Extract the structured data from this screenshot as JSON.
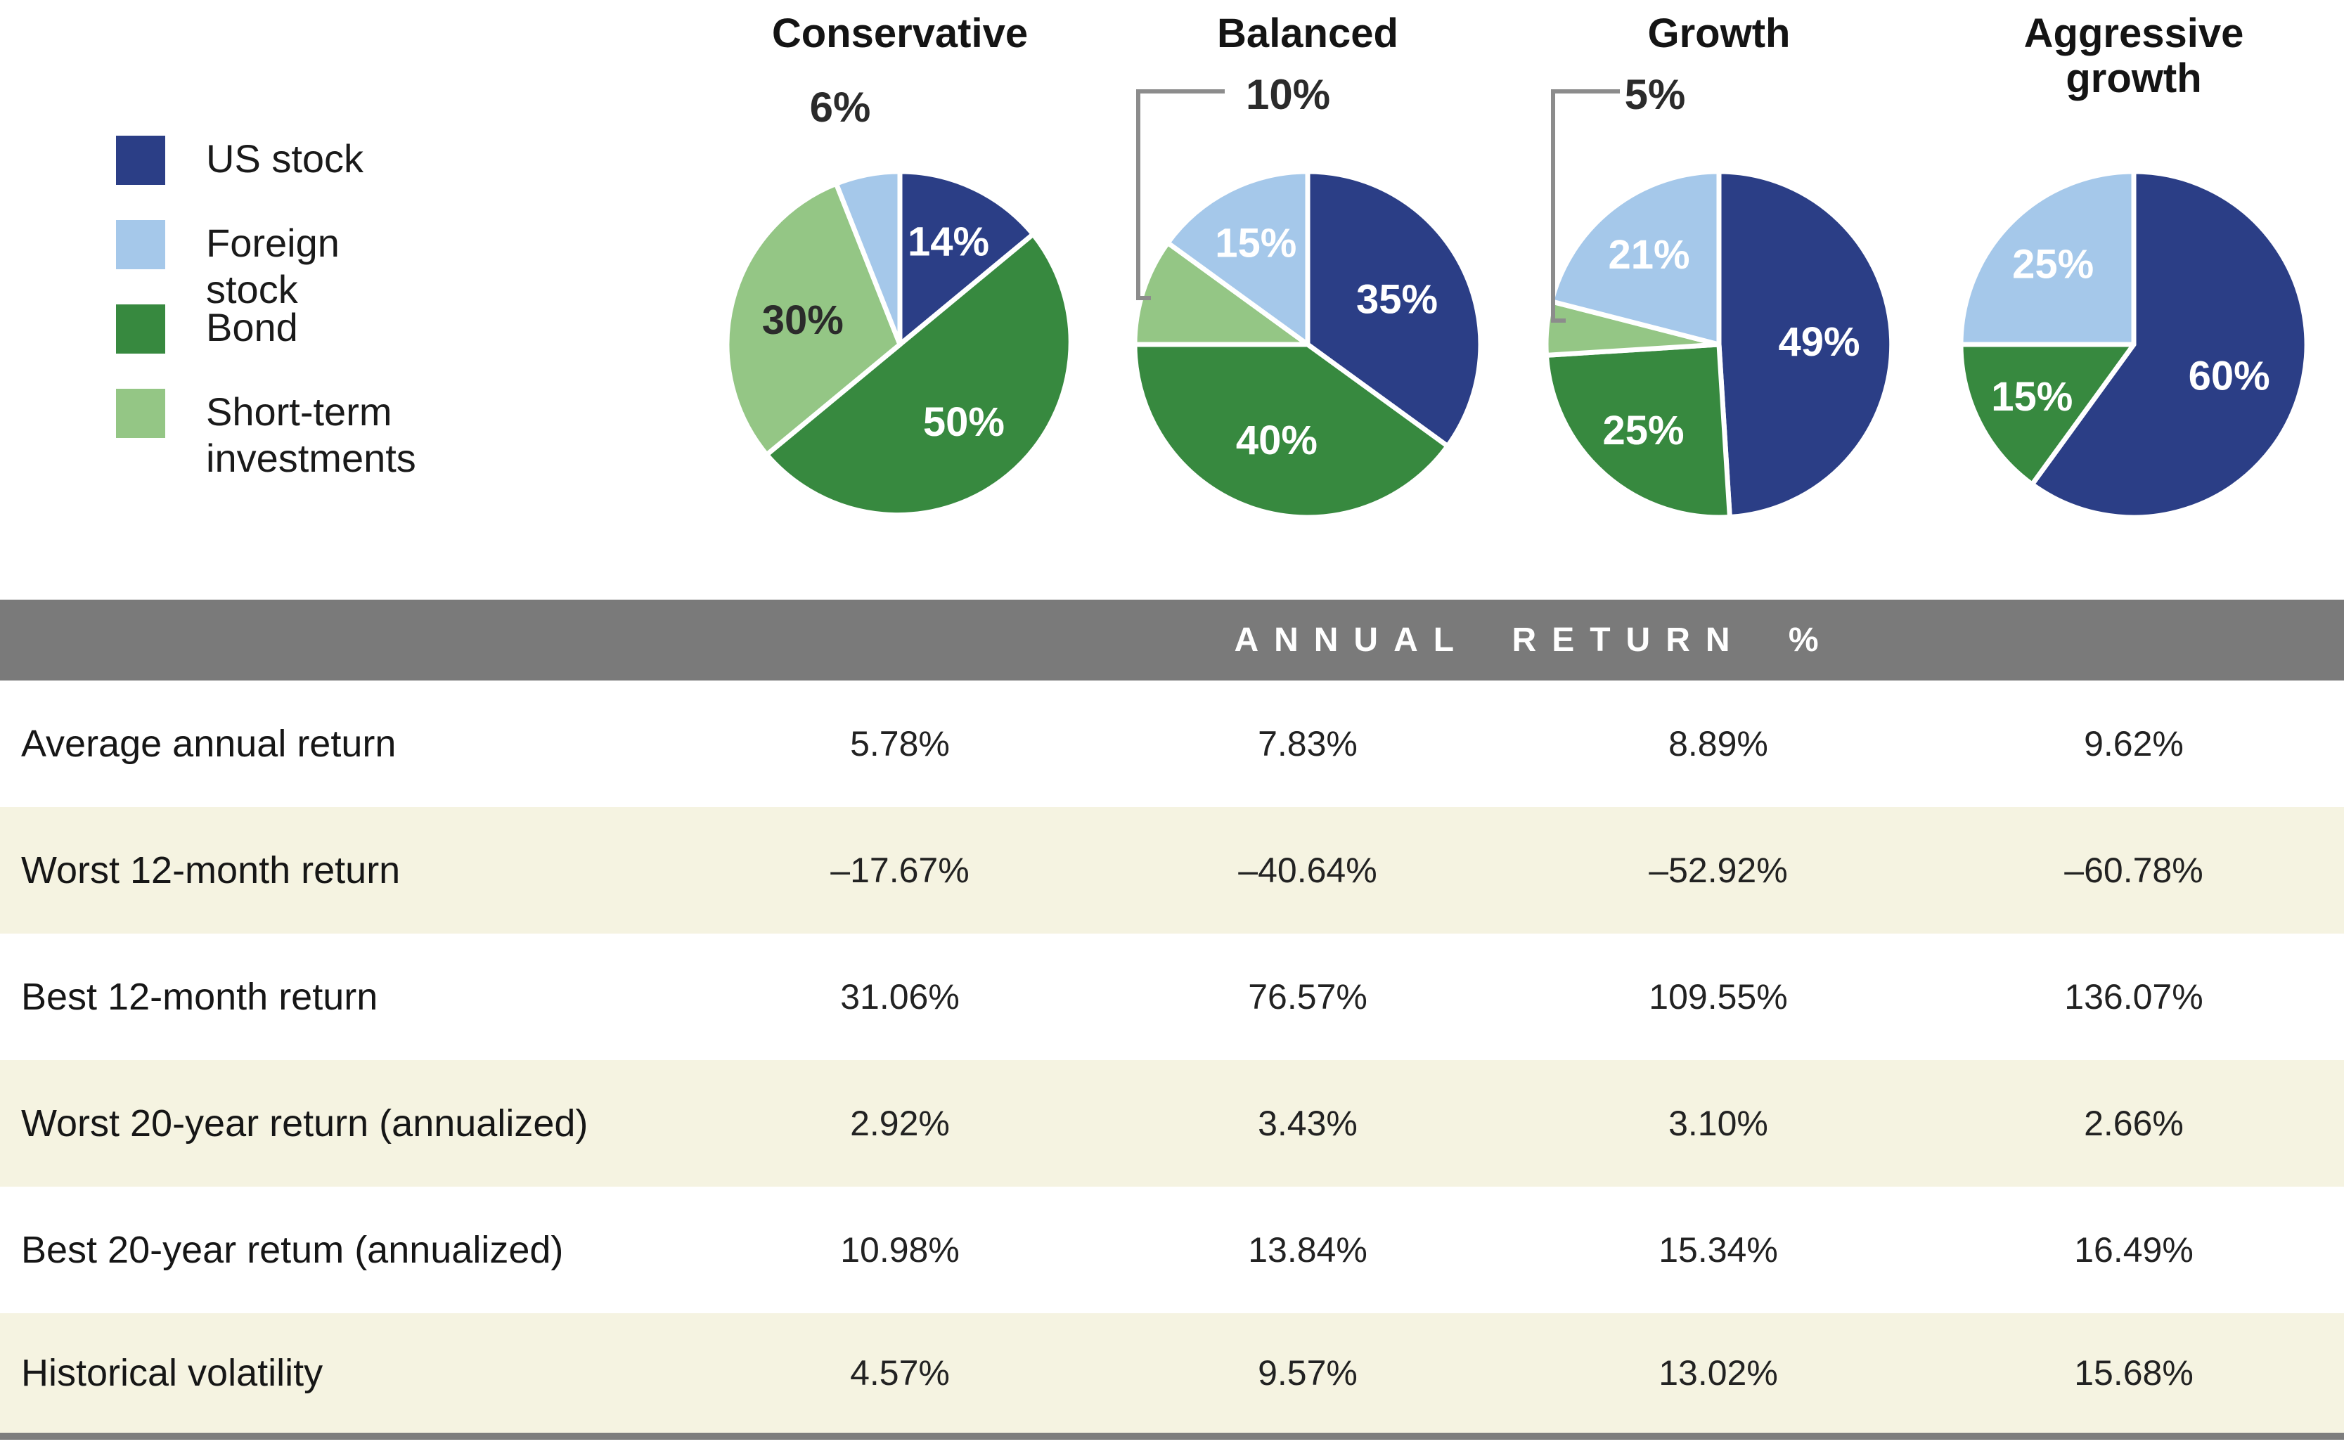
{
  "palette": {
    "us_stock": "#2b3e86",
    "foreign_stock": "#a5c8ea",
    "bond": "#37893f",
    "short_term_investments": "#94c685",
    "header_band_gray": "#7a7a7a",
    "row_stripe_cream": "#f5f3e1",
    "bottom_rule_gray": "#7d7d7d",
    "callout_line_gray": "#8c8c8c",
    "label_dark": "#2b2b2b",
    "label_light": "#ffffff"
  },
  "legend": {
    "items": [
      {
        "label": "US stock",
        "color": "#2b3e86"
      },
      {
        "label": "Foreign stock",
        "color": "#a5c8ea"
      },
      {
        "label": "Bond",
        "color": "#37893f"
      },
      {
        "label": "Short-term investments",
        "color": "#94c685"
      }
    ]
  },
  "chart_data": [
    {
      "type": "pie",
      "title": "Conservative",
      "slices": [
        {
          "label": "US stock",
          "value": 14,
          "pct_label": "14%",
          "color": "#2b3e86",
          "label_pos": "inside",
          "label_color": "#ffffff"
        },
        {
          "label": "Bond",
          "value": 50,
          "pct_label": "50%",
          "color": "#37893f",
          "label_pos": "inside",
          "label_color": "#ffffff"
        },
        {
          "label": "Short-term investments",
          "value": 30,
          "pct_label": "30%",
          "color": "#94c685",
          "label_pos": "inside",
          "label_color": "#2b2b2b"
        },
        {
          "label": "Foreign stock",
          "value": 6,
          "pct_label": "6%",
          "color": "#a5c8ea",
          "label_pos": "outside",
          "label_color": "#2b2b2b"
        }
      ]
    },
    {
      "type": "pie",
      "title": "Balanced",
      "slices": [
        {
          "label": "US stock",
          "value": 35,
          "pct_label": "35%",
          "color": "#2b3e86",
          "label_pos": "inside",
          "label_color": "#ffffff"
        },
        {
          "label": "Bond",
          "value": 40,
          "pct_label": "40%",
          "color": "#37893f",
          "label_pos": "inside",
          "label_color": "#ffffff"
        },
        {
          "label": "Short-term investments",
          "value": 10,
          "pct_label": "10%",
          "color": "#94c685",
          "label_pos": "callout",
          "label_color": "#2b2b2b"
        },
        {
          "label": "Foreign stock",
          "value": 15,
          "pct_label": "15%",
          "color": "#a5c8ea",
          "label_pos": "inside",
          "label_color": "#ffffff"
        }
      ]
    },
    {
      "type": "pie",
      "title": "Growth",
      "slices": [
        {
          "label": "US stock",
          "value": 49,
          "pct_label": "49%",
          "color": "#2b3e86",
          "label_pos": "inside",
          "label_color": "#ffffff"
        },
        {
          "label": "Bond",
          "value": 25,
          "pct_label": "25%",
          "color": "#37893f",
          "label_pos": "inside",
          "label_color": "#ffffff"
        },
        {
          "label": "Short-term investments",
          "value": 5,
          "pct_label": "5%",
          "color": "#94c685",
          "label_pos": "callout",
          "label_color": "#2b2b2b"
        },
        {
          "label": "Foreign stock",
          "value": 21,
          "pct_label": "21%",
          "color": "#a5c8ea",
          "label_pos": "inside",
          "label_color": "#ffffff"
        }
      ]
    },
    {
      "type": "pie",
      "title": "Aggressive growth",
      "slices": [
        {
          "label": "US stock",
          "value": 60,
          "pct_label": "60%",
          "color": "#2b3e86",
          "label_pos": "inside",
          "label_color": "#ffffff"
        },
        {
          "label": "Bond",
          "value": 15,
          "pct_label": "15%",
          "color": "#37893f",
          "label_pos": "inside",
          "label_color": "#ffffff"
        },
        {
          "label": "Foreign stock",
          "value": 25,
          "pct_label": "25%",
          "color": "#a5c8ea",
          "label_pos": "inside",
          "label_color": "#ffffff"
        }
      ]
    },
    {
      "type": "table",
      "header": "ANNUAL RETURN %",
      "columns": [
        "Conservative",
        "Balanced",
        "Growth",
        "Aggressive growth"
      ],
      "rows": [
        {
          "label": "Average annual return",
          "values": [
            "5.78%",
            "7.83%",
            "8.89%",
            "9.62%"
          ]
        },
        {
          "label": "Worst 12-month return",
          "values": [
            "–17.67%",
            "–40.64%",
            "–52.92%",
            "–60.78%"
          ]
        },
        {
          "label": "Best 12-month return",
          "values": [
            "31.06%",
            "76.57%",
            "109.55%",
            "136.07%"
          ]
        },
        {
          "label": "Worst 20-year return (annualized)",
          "values": [
            "2.92%",
            "3.43%",
            "3.10%",
            "2.66%"
          ]
        },
        {
          "label": "Best 20-year retum (annualized)",
          "values": [
            "10.98%",
            "13.84%",
            "15.34%",
            "16.49%"
          ]
        },
        {
          "label": "Historical volatility",
          "values": [
            "4.57%",
            "9.57%",
            "13.02%",
            "15.68%"
          ]
        }
      ]
    }
  ]
}
